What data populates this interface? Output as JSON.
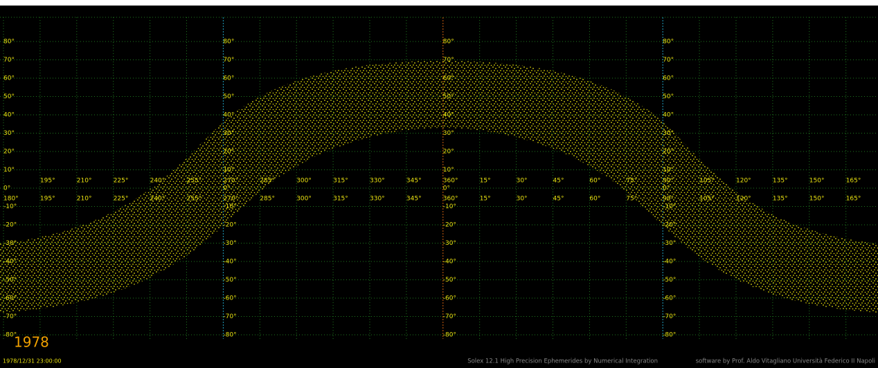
{
  "year": "1978",
  "timestamp": "1978/12/31 23:00:00",
  "credits": "Solex 12.1  High Precision Ephemerides by Numerical Integration",
  "author": "software by Prof. Aldo Vitagliano Università Federico II  Napoli",
  "lat_labels": [
    "80°",
    "70°",
    "60°",
    "50°",
    "40°",
    "30°",
    "20°",
    "10°",
    "0°",
    "-10°",
    "-20°",
    "-30°",
    "-40°",
    "-50°",
    "-60°",
    "-70°",
    "-80°"
  ],
  "lon_labels": [
    "180°",
    "195°",
    "210°",
    "225°",
    "240°",
    "255°",
    "270°",
    "285°",
    "300°",
    "315°",
    "330°",
    "345°",
    "360°",
    "15°",
    "30°",
    "45°",
    "60°",
    "75°",
    "90°",
    "105°",
    "120°",
    "135°",
    "150°",
    "165°"
  ]
}
